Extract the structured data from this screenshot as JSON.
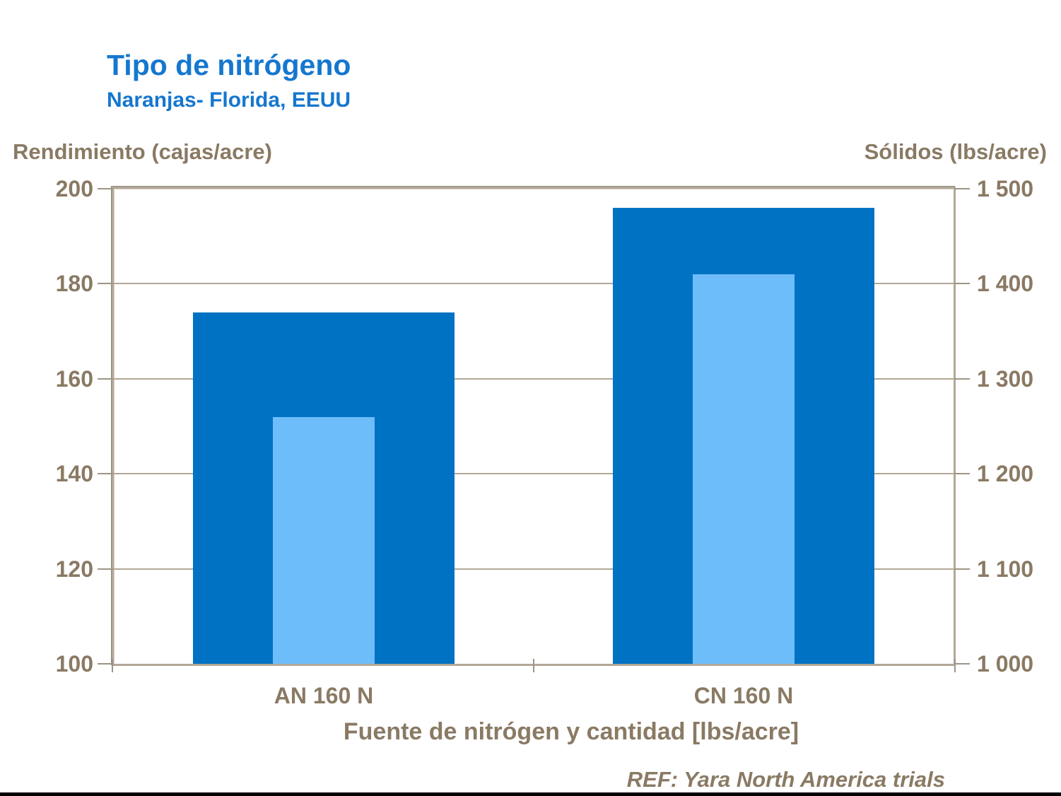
{
  "title": "Tipo de nitrógeno",
  "subtitle": "Naranjas- Florida, EEUU",
  "left_axis": {
    "label": "Rendimiento (cajas/acre)",
    "ticks": [
      "200",
      "180",
      "160",
      "140",
      "120",
      "100"
    ],
    "min": 100,
    "max": 200
  },
  "right_axis": {
    "label": "Sólidos (lbs/acre)",
    "ticks": [
      "1 500",
      "1 400",
      "1 300",
      "1 200",
      "1 100",
      "1 000"
    ],
    "min": 1000,
    "max": 1500
  },
  "x_axis": {
    "label": "Fuente de nitrógen y cantidad [lbs/acre]",
    "categories": [
      "AN 160 N",
      "CN 160 N"
    ]
  },
  "footer": {
    "ref": "REF: Yara North America trials"
  },
  "colors": {
    "title_blue": "#1577cf",
    "text_brown": "#8a7a64",
    "yield_bar_dark_blue": "#0072c4",
    "solids_bar_light_blue": "#6dbdfb",
    "grid_tan": "#b2a897"
  },
  "chart_data": {
    "type": "bar",
    "title": "Tipo de nitrógeno — Naranjas- Florida, EEUU",
    "xlabel": "Fuente de nitrógen y cantidad [lbs/acre]",
    "categories": [
      "AN 160 N",
      "CN 160 N"
    ],
    "series": [
      {
        "name": "Rendimiento (cajas/acre)",
        "axis": "left",
        "values": [
          174,
          196
        ],
        "color": "#0072c4",
        "style": "wide dark bar"
      },
      {
        "name": "Sólidos (lbs/acre)",
        "axis": "right",
        "values": [
          1260,
          1410
        ],
        "color": "#6dbdfb",
        "style": "narrow light bar overlaid"
      }
    ],
    "left_ylim": [
      100,
      200
    ],
    "right_ylim": [
      1000,
      1500
    ],
    "gridlines": "horizontal, every 20 (left) / 100 (right)",
    "legend": false
  }
}
